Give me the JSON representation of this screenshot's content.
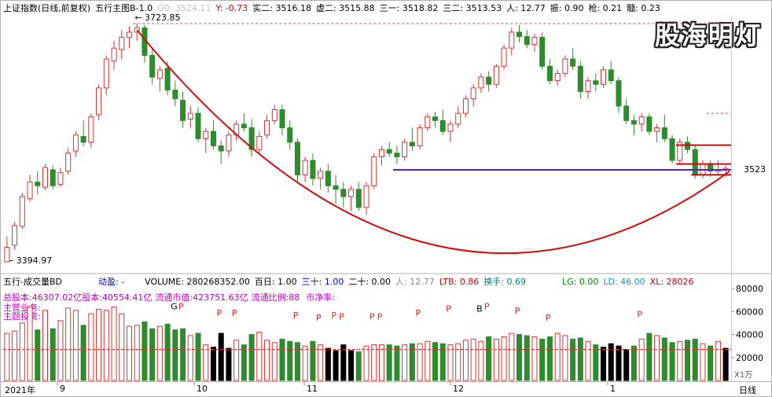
{
  "header": {
    "title": "上证指数(日线,前复权)",
    "indicator": "五行主图B-1.0",
    "g0": "G0: 3524.11",
    "y": "Y: -0.73",
    "shi2": "实二: 3516.18",
    "xu2": "虚二: 3515.88",
    "san1": "三一: 3518.82",
    "san2": "三二: 3513.53",
    "ren": "人: 12.77",
    "zhen": "振: 0.90",
    "qiang": "枪: 0.21",
    "sui": "髓: 0.23"
  },
  "watermark": "股海明灯",
  "price_labels": {
    "high": "3723.85",
    "low": "3394.97",
    "right": "3523"
  },
  "volume_header": {
    "title": "五行-成交量BD",
    "dongying": "动盈: -",
    "volume": "VOLUME: 280268352.00",
    "bairi": "百日: 1.00",
    "sanshi": "三十: 1.00",
    "ershi": "二十: 0.00",
    "ren": "人: 12.77",
    "ltb": "LTB: 0.86",
    "huanshou": "换手: 0.69",
    "lg": "LG: 0.00",
    "ld": "LD: 46.00",
    "xl": "XL: 28026"
  },
  "fundamentals": {
    "l1": "总股本:4630",
    "l1b": "7.02亿股本:40554.41亿",
    "l1c": "流通市值:423751.63亿",
    "l1d": "流通比例:88",
    "l1e": "市净率:",
    "l2": "主营业务:",
    "l3": "主题投资:"
  },
  "volume_axis": [
    "80000",
    "60000",
    "40000",
    "20000"
  ],
  "volume_unit": "X1万",
  "dates": [
    "2021年",
    "9",
    "10",
    "11",
    "12",
    "1"
  ],
  "period": "日线",
  "chart_data": {
    "type": "candlestick",
    "ohlc": [
      [
        3395,
        3430,
        3395,
        3415
      ],
      [
        3418,
        3450,
        3412,
        3445
      ],
      [
        3444,
        3490,
        3440,
        3485
      ],
      [
        3482,
        3515,
        3478,
        3505
      ],
      [
        3505,
        3520,
        3488,
        3500
      ],
      [
        3498,
        3530,
        3494,
        3525
      ],
      [
        3522,
        3528,
        3495,
        3500
      ],
      [
        3502,
        3525,
        3498,
        3518
      ],
      [
        3520,
        3552,
        3515,
        3545
      ],
      [
        3548,
        3575,
        3540,
        3570
      ],
      [
        3568,
        3590,
        3555,
        3560
      ],
      [
        3560,
        3600,
        3552,
        3595
      ],
      [
        3598,
        3640,
        3590,
        3635
      ],
      [
        3635,
        3680,
        3625,
        3675
      ],
      [
        3672,
        3700,
        3660,
        3690
      ],
      [
        3688,
        3715,
        3675,
        3705
      ],
      [
        3705,
        3720,
        3690,
        3712
      ],
      [
        3712,
        3724,
        3700,
        3718
      ],
      [
        3718,
        3722,
        3670,
        3680
      ],
      [
        3680,
        3690,
        3640,
        3650
      ],
      [
        3648,
        3665,
        3630,
        3660
      ],
      [
        3662,
        3672,
        3625,
        3632
      ],
      [
        3632,
        3645,
        3610,
        3620
      ],
      [
        3618,
        3630,
        3580,
        3590
      ],
      [
        3592,
        3610,
        3580,
        3600
      ],
      [
        3600,
        3608,
        3560,
        3565
      ],
      [
        3565,
        3580,
        3545,
        3575
      ],
      [
        3575,
        3590,
        3550,
        3555
      ],
      [
        3555,
        3562,
        3530,
        3548
      ],
      [
        3548,
        3575,
        3540,
        3570
      ],
      [
        3570,
        3590,
        3562,
        3585
      ],
      [
        3585,
        3600,
        3575,
        3580
      ],
      [
        3580,
        3592,
        3540,
        3550
      ],
      [
        3550,
        3575,
        3545,
        3568
      ],
      [
        3570,
        3598,
        3565,
        3590
      ],
      [
        3590,
        3612,
        3585,
        3605
      ],
      [
        3605,
        3612,
        3570,
        3580
      ],
      [
        3580,
        3590,
        3550,
        3560
      ],
      [
        3560,
        3565,
        3505,
        3515
      ],
      [
        3515,
        3540,
        3505,
        3535
      ],
      [
        3535,
        3545,
        3500,
        3510
      ],
      [
        3510,
        3525,
        3495,
        3520
      ],
      [
        3520,
        3530,
        3490,
        3500
      ],
      [
        3500,
        3515,
        3475,
        3495
      ],
      [
        3495,
        3505,
        3470,
        3485
      ],
      [
        3485,
        3500,
        3465,
        3495
      ],
      [
        3495,
        3505,
        3465,
        3470
      ],
      [
        3470,
        3505,
        3460,
        3500
      ],
      [
        3500,
        3545,
        3495,
        3540
      ],
      [
        3540,
        3555,
        3528,
        3550
      ],
      [
        3550,
        3560,
        3540,
        3545
      ],
      [
        3545,
        3555,
        3530,
        3540
      ],
      [
        3540,
        3565,
        3535,
        3560
      ],
      [
        3560,
        3580,
        3548,
        3555
      ],
      [
        3555,
        3585,
        3550,
        3580
      ],
      [
        3580,
        3600,
        3575,
        3595
      ],
      [
        3595,
        3602,
        3580,
        3590
      ],
      [
        3590,
        3605,
        3570,
        3575
      ],
      [
        3575,
        3590,
        3560,
        3585
      ],
      [
        3585,
        3610,
        3580,
        3600
      ],
      [
        3600,
        3625,
        3595,
        3620
      ],
      [
        3620,
        3640,
        3610,
        3635
      ],
      [
        3635,
        3655,
        3628,
        3650
      ],
      [
        3650,
        3658,
        3630,
        3640
      ],
      [
        3640,
        3668,
        3635,
        3665
      ],
      [
        3665,
        3695,
        3660,
        3690
      ],
      [
        3690,
        3718,
        3680,
        3712
      ],
      [
        3712,
        3722,
        3698,
        3706
      ],
      [
        3706,
        3715,
        3690,
        3695
      ],
      [
        3695,
        3710,
        3685,
        3705
      ],
      [
        3705,
        3712,
        3660,
        3665
      ],
      [
        3665,
        3675,
        3640,
        3645
      ],
      [
        3645,
        3660,
        3638,
        3655
      ],
      [
        3655,
        3680,
        3650,
        3675
      ],
      [
        3675,
        3690,
        3660,
        3665
      ],
      [
        3665,
        3672,
        3620,
        3630
      ],
      [
        3630,
        3650,
        3620,
        3645
      ],
      [
        3645,
        3655,
        3630,
        3640
      ],
      [
        3640,
        3665,
        3635,
        3660
      ],
      [
        3660,
        3672,
        3640,
        3645
      ],
      [
        3645,
        3650,
        3600,
        3610
      ],
      [
        3610,
        3620,
        3585,
        3590
      ],
      [
        3590,
        3598,
        3570,
        3585
      ],
      [
        3585,
        3600,
        3575,
        3595
      ],
      [
        3595,
        3600,
        3570,
        3575
      ],
      [
        3575,
        3585,
        3560,
        3580
      ],
      [
        3580,
        3598,
        3560,
        3565
      ],
      [
        3565,
        3570,
        3530,
        3535
      ],
      [
        3535,
        3565,
        3528,
        3560
      ],
      [
        3560,
        3568,
        3545,
        3550
      ],
      [
        3550,
        3555,
        3510,
        3515
      ],
      [
        3515,
        3535,
        3510,
        3530
      ],
      [
        3530,
        3535,
        3512,
        3520
      ],
      [
        3520,
        3535,
        3515,
        3522
      ],
      [
        3522,
        3528,
        3512,
        3524
      ]
    ],
    "volume": [
      41000,
      43000,
      50000,
      64000,
      44000,
      61000,
      45000,
      52000,
      63000,
      61000,
      48000,
      58000,
      62000,
      61000,
      64000,
      58000,
      47000,
      48000,
      51000,
      45000,
      47000,
      49000,
      44000,
      45000,
      39000,
      41000,
      31000,
      29000,
      41000,
      28000,
      35000,
      31000,
      40000,
      42000,
      35000,
      33000,
      36000,
      34000,
      33000,
      30000,
      34000,
      31000,
      28000,
      26000,
      31000,
      26000,
      25000,
      30000,
      31000,
      31000,
      31000,
      30000,
      31000,
      32000,
      32000,
      34000,
      33000,
      32000,
      31000,
      32000,
      35000,
      36000,
      34000,
      38000,
      36000,
      38000,
      41000,
      40000,
      39000,
      38000,
      36000,
      38000,
      41000,
      39000,
      36000,
      37000,
      34000,
      31000,
      29000,
      32000,
      30000,
      27000,
      30000,
      36000,
      41000,
      39000,
      37000,
      33000,
      34000,
      35000,
      36000,
      32000,
      30000,
      34000,
      28000
    ],
    "signals": [
      "G",
      "P",
      "P",
      "P",
      "P",
      "P",
      "P",
      "P",
      "P",
      "P",
      "P",
      "P",
      "B",
      "P",
      "P",
      "P",
      "P"
    ],
    "ylim_price": [
      3394.97,
      3723.85
    ],
    "ylim_volume": [
      0,
      80000
    ]
  }
}
